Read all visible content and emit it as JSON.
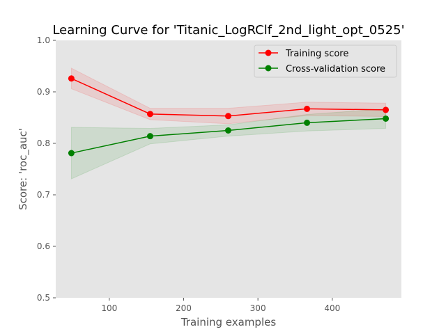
{
  "chart_data": {
    "type": "line",
    "title": "Learning Curve for 'Titanic_LogRClf_2nd_light_opt_0525'",
    "xlabel": "Training examples",
    "ylabel": "Score: 'roc_auc'",
    "xlim": [
      28,
      493
    ],
    "ylim": [
      0.5,
      1.0
    ],
    "xticks": [
      100,
      200,
      300,
      400
    ],
    "xtick_labels": [
      "100",
      "200",
      "300",
      "400"
    ],
    "yticks": [
      0.5,
      0.6,
      0.7,
      0.8,
      0.9,
      1.0
    ],
    "ytick_labels": [
      "0.5",
      "0.6",
      "0.7",
      "0.8",
      "0.9",
      "1.0"
    ],
    "grid": false,
    "legend_position": "top-right",
    "background": "#e5e5e5",
    "x": [
      49,
      155,
      260,
      366,
      472
    ],
    "series": [
      {
        "name": "Training score",
        "color": "#ff0000",
        "values": [
          0.926,
          0.857,
          0.853,
          0.867,
          0.865
        ],
        "upper": [
          0.946,
          0.868,
          0.868,
          0.88,
          0.878
        ],
        "lower": [
          0.906,
          0.846,
          0.838,
          0.854,
          0.852
        ]
      },
      {
        "name": "Cross-validation score",
        "color": "#008000",
        "values": [
          0.781,
          0.814,
          0.825,
          0.84,
          0.848
        ],
        "upper": [
          0.831,
          0.829,
          0.836,
          0.856,
          0.867
        ],
        "lower": [
          0.731,
          0.799,
          0.814,
          0.824,
          0.829
        ]
      }
    ]
  }
}
